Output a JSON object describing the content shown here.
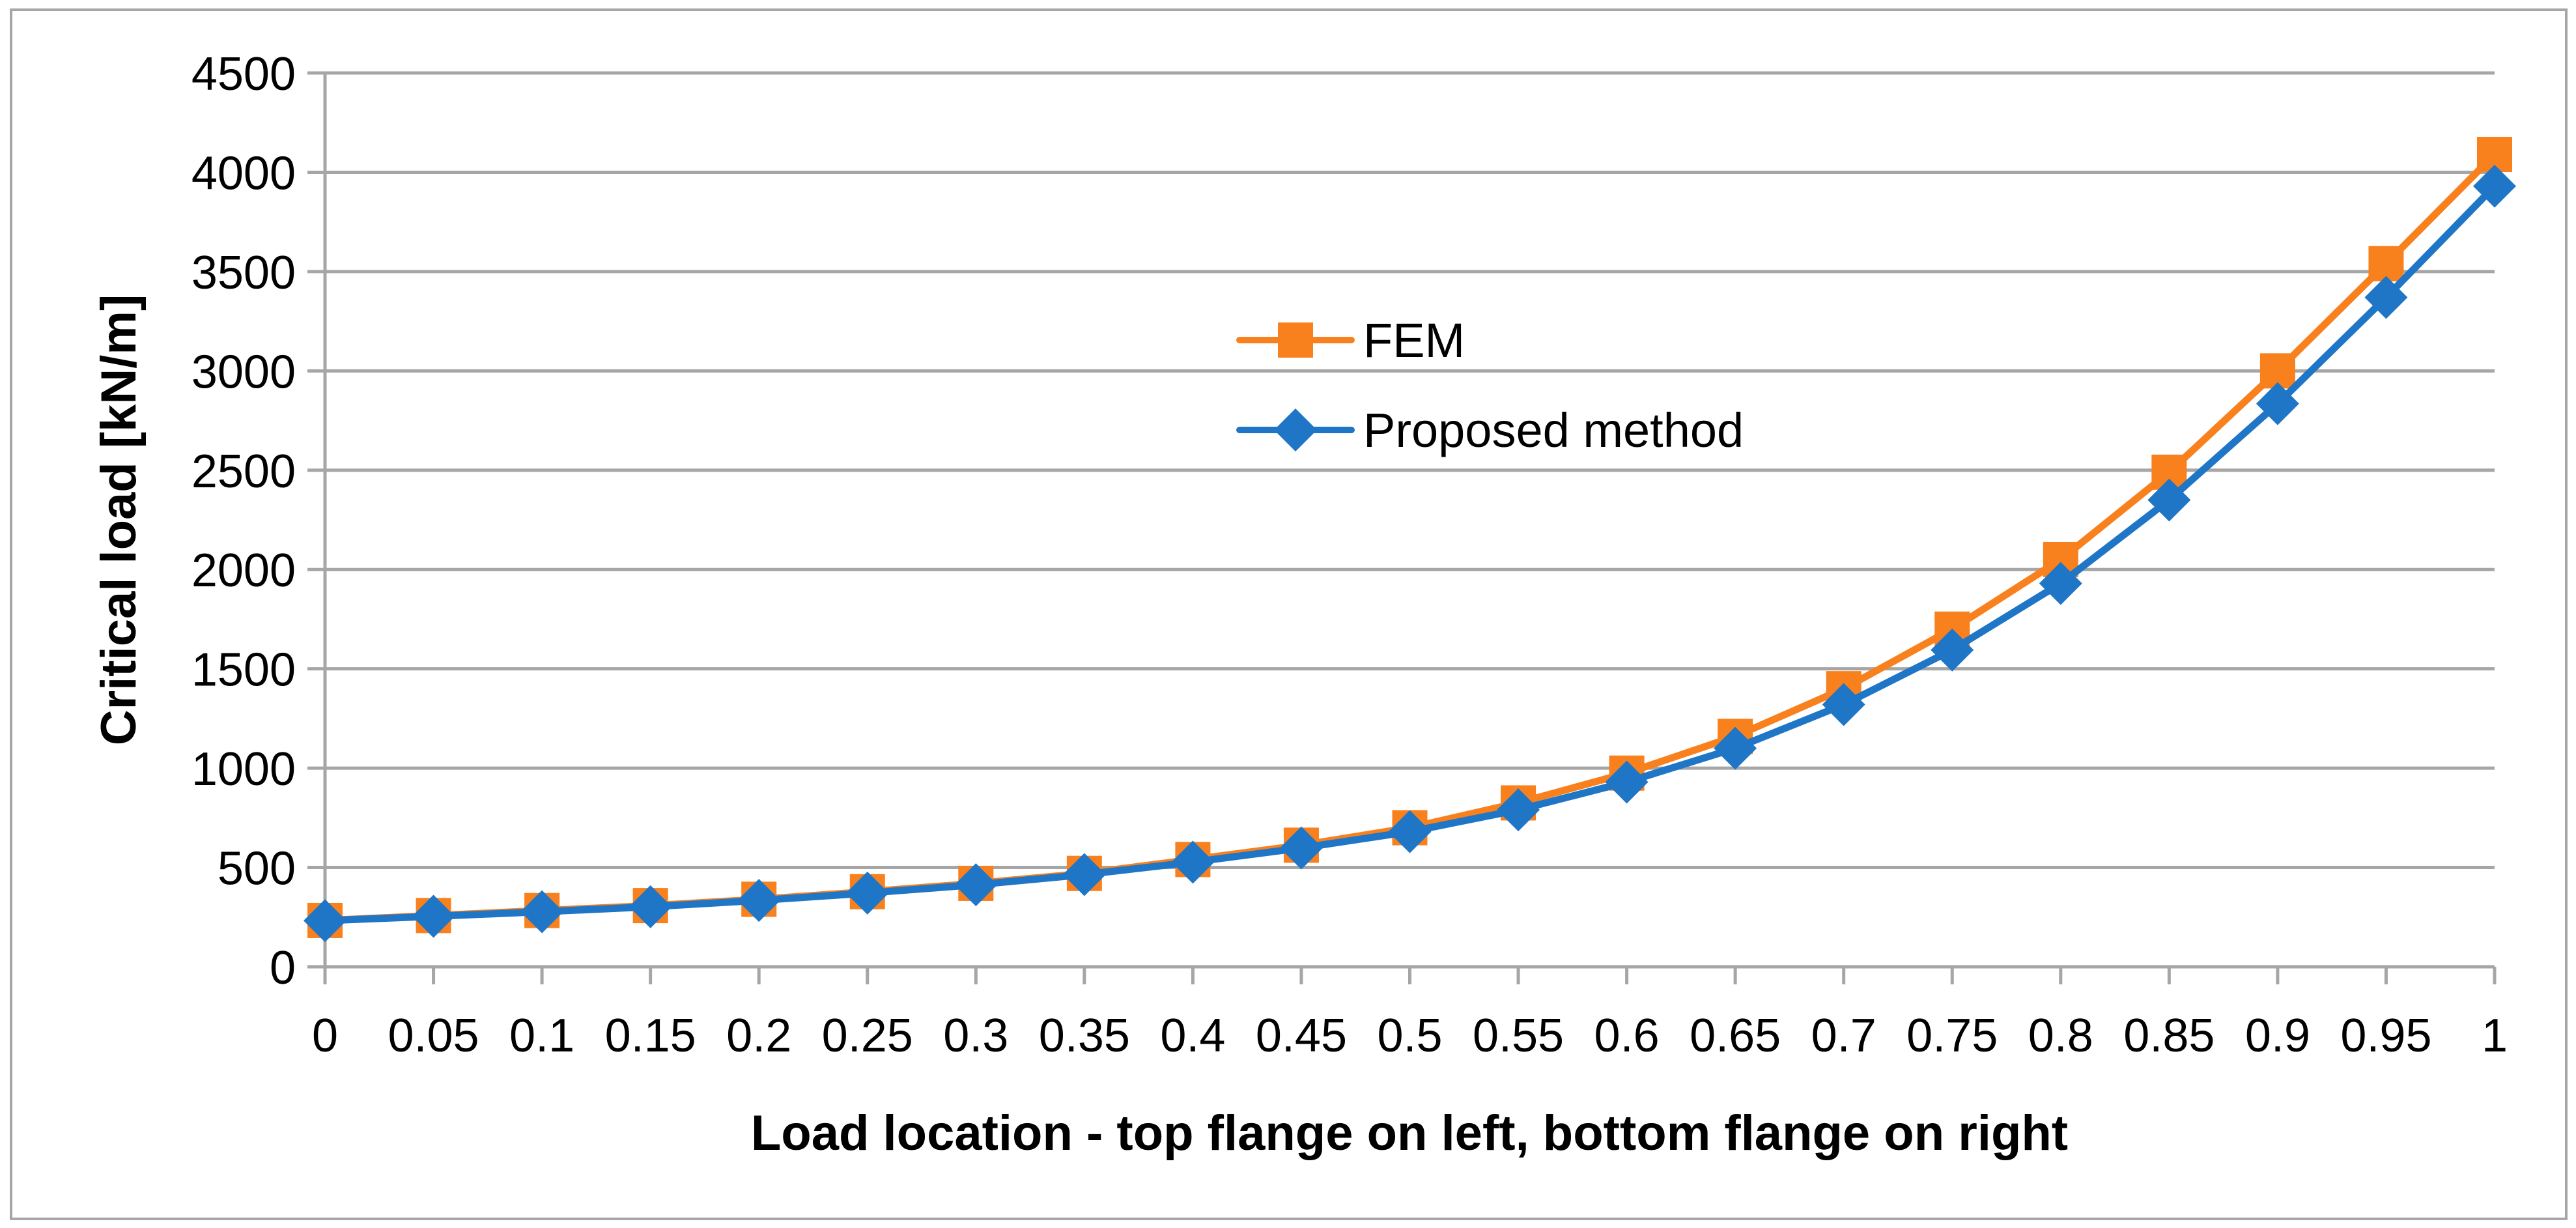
{
  "figure": {
    "background_color": "#FFFFFF",
    "border_color": "#A6A6A6",
    "gridline_color": "#A6A6A6",
    "axis_line_color": "#A6A6A6",
    "text_color": "#000000"
  },
  "chart_data": {
    "type": "line",
    "title": "",
    "xlabel": "Load location - top flange on left, bottom flange on right",
    "ylabel": "Critical load [kN/m]",
    "xlim": [
      0,
      1
    ],
    "ylim": [
      0,
      4500
    ],
    "grid": "horizontal-only",
    "legend_position": "upper-center-inside",
    "x_ticks": [
      "0",
      "0.05",
      "0.1",
      "0.15",
      "0.2",
      "0.25",
      "0.3",
      "0.35",
      "0.4",
      "0.45",
      "0.5",
      "0.55",
      "0.6",
      "0.65",
      "0.7",
      "0.75",
      "0.8",
      "0.85",
      "0.9",
      "0.95",
      "1"
    ],
    "y_ticks": [
      "0",
      "500",
      "1000",
      "1500",
      "2000",
      "2500",
      "3000",
      "3500",
      "4000",
      "4500"
    ],
    "x": [
      0,
      0.05,
      0.1,
      0.15,
      0.2,
      0.25,
      0.3,
      0.35,
      0.4,
      0.45,
      0.5,
      0.55,
      0.6,
      0.65,
      0.7,
      0.75,
      0.8,
      0.85,
      0.9,
      0.95,
      1
    ],
    "series": [
      {
        "name": "FEM",
        "color": "#F8811E",
        "marker": "square",
        "values": [
          233,
          258,
          283,
          308,
          340,
          378,
          420,
          470,
          540,
          612,
          700,
          825,
          975,
          1160,
          1400,
          1700,
          2050,
          2490,
          3000,
          3540,
          4090
        ]
      },
      {
        "name": "Proposed method",
        "color": "#1F76C6",
        "marker": "diamond",
        "values": [
          232,
          254,
          277,
          302,
          334,
          371,
          413,
          464,
          527,
          598,
          680,
          790,
          930,
          1100,
          1320,
          1595,
          1930,
          2350,
          2835,
          3370,
          3930
        ]
      }
    ]
  }
}
